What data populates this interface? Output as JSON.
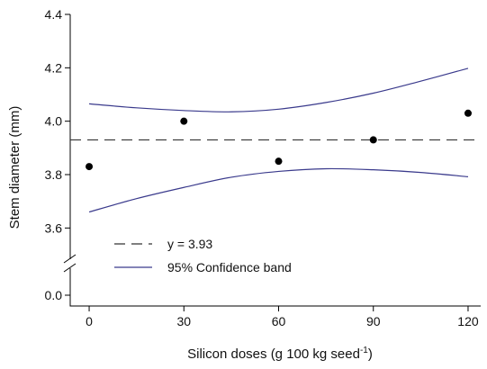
{
  "chart_data": {
    "type": "scatter",
    "xlabel": "Silicon doses (g 100 kg seed",
    "xlabel_sup": "-1",
    "xlabel_end": ")",
    "ylabel": "Stem diameter (mm)",
    "x_ticks": [
      "0",
      "30",
      "60",
      "90",
      "120"
    ],
    "y_ticks": [
      "3.6",
      "3.8",
      "4.0",
      "4.2",
      "4.4"
    ],
    "y_break_tick": "0.0",
    "xlim": [
      -6,
      124
    ],
    "ylim": [
      3.5,
      4.4
    ],
    "points": {
      "x": [
        0,
        30,
        60,
        90,
        120
      ],
      "y": [
        3.83,
        4.0,
        3.85,
        3.93,
        4.03
      ]
    },
    "mean_line": {
      "y": 3.93,
      "label": "y = 3.93"
    },
    "confidence_band": {
      "label": "95% Confidence band",
      "x": [
        0,
        15,
        30,
        45,
        60,
        75,
        90,
        105,
        120
      ],
      "upper": [
        4.065,
        4.05,
        4.04,
        4.035,
        4.045,
        4.07,
        4.105,
        4.15,
        4.198
      ],
      "lower": [
        3.66,
        3.71,
        3.752,
        3.79,
        3.812,
        3.822,
        3.818,
        3.808,
        3.792
      ]
    },
    "legend_position": "bottom-left"
  }
}
